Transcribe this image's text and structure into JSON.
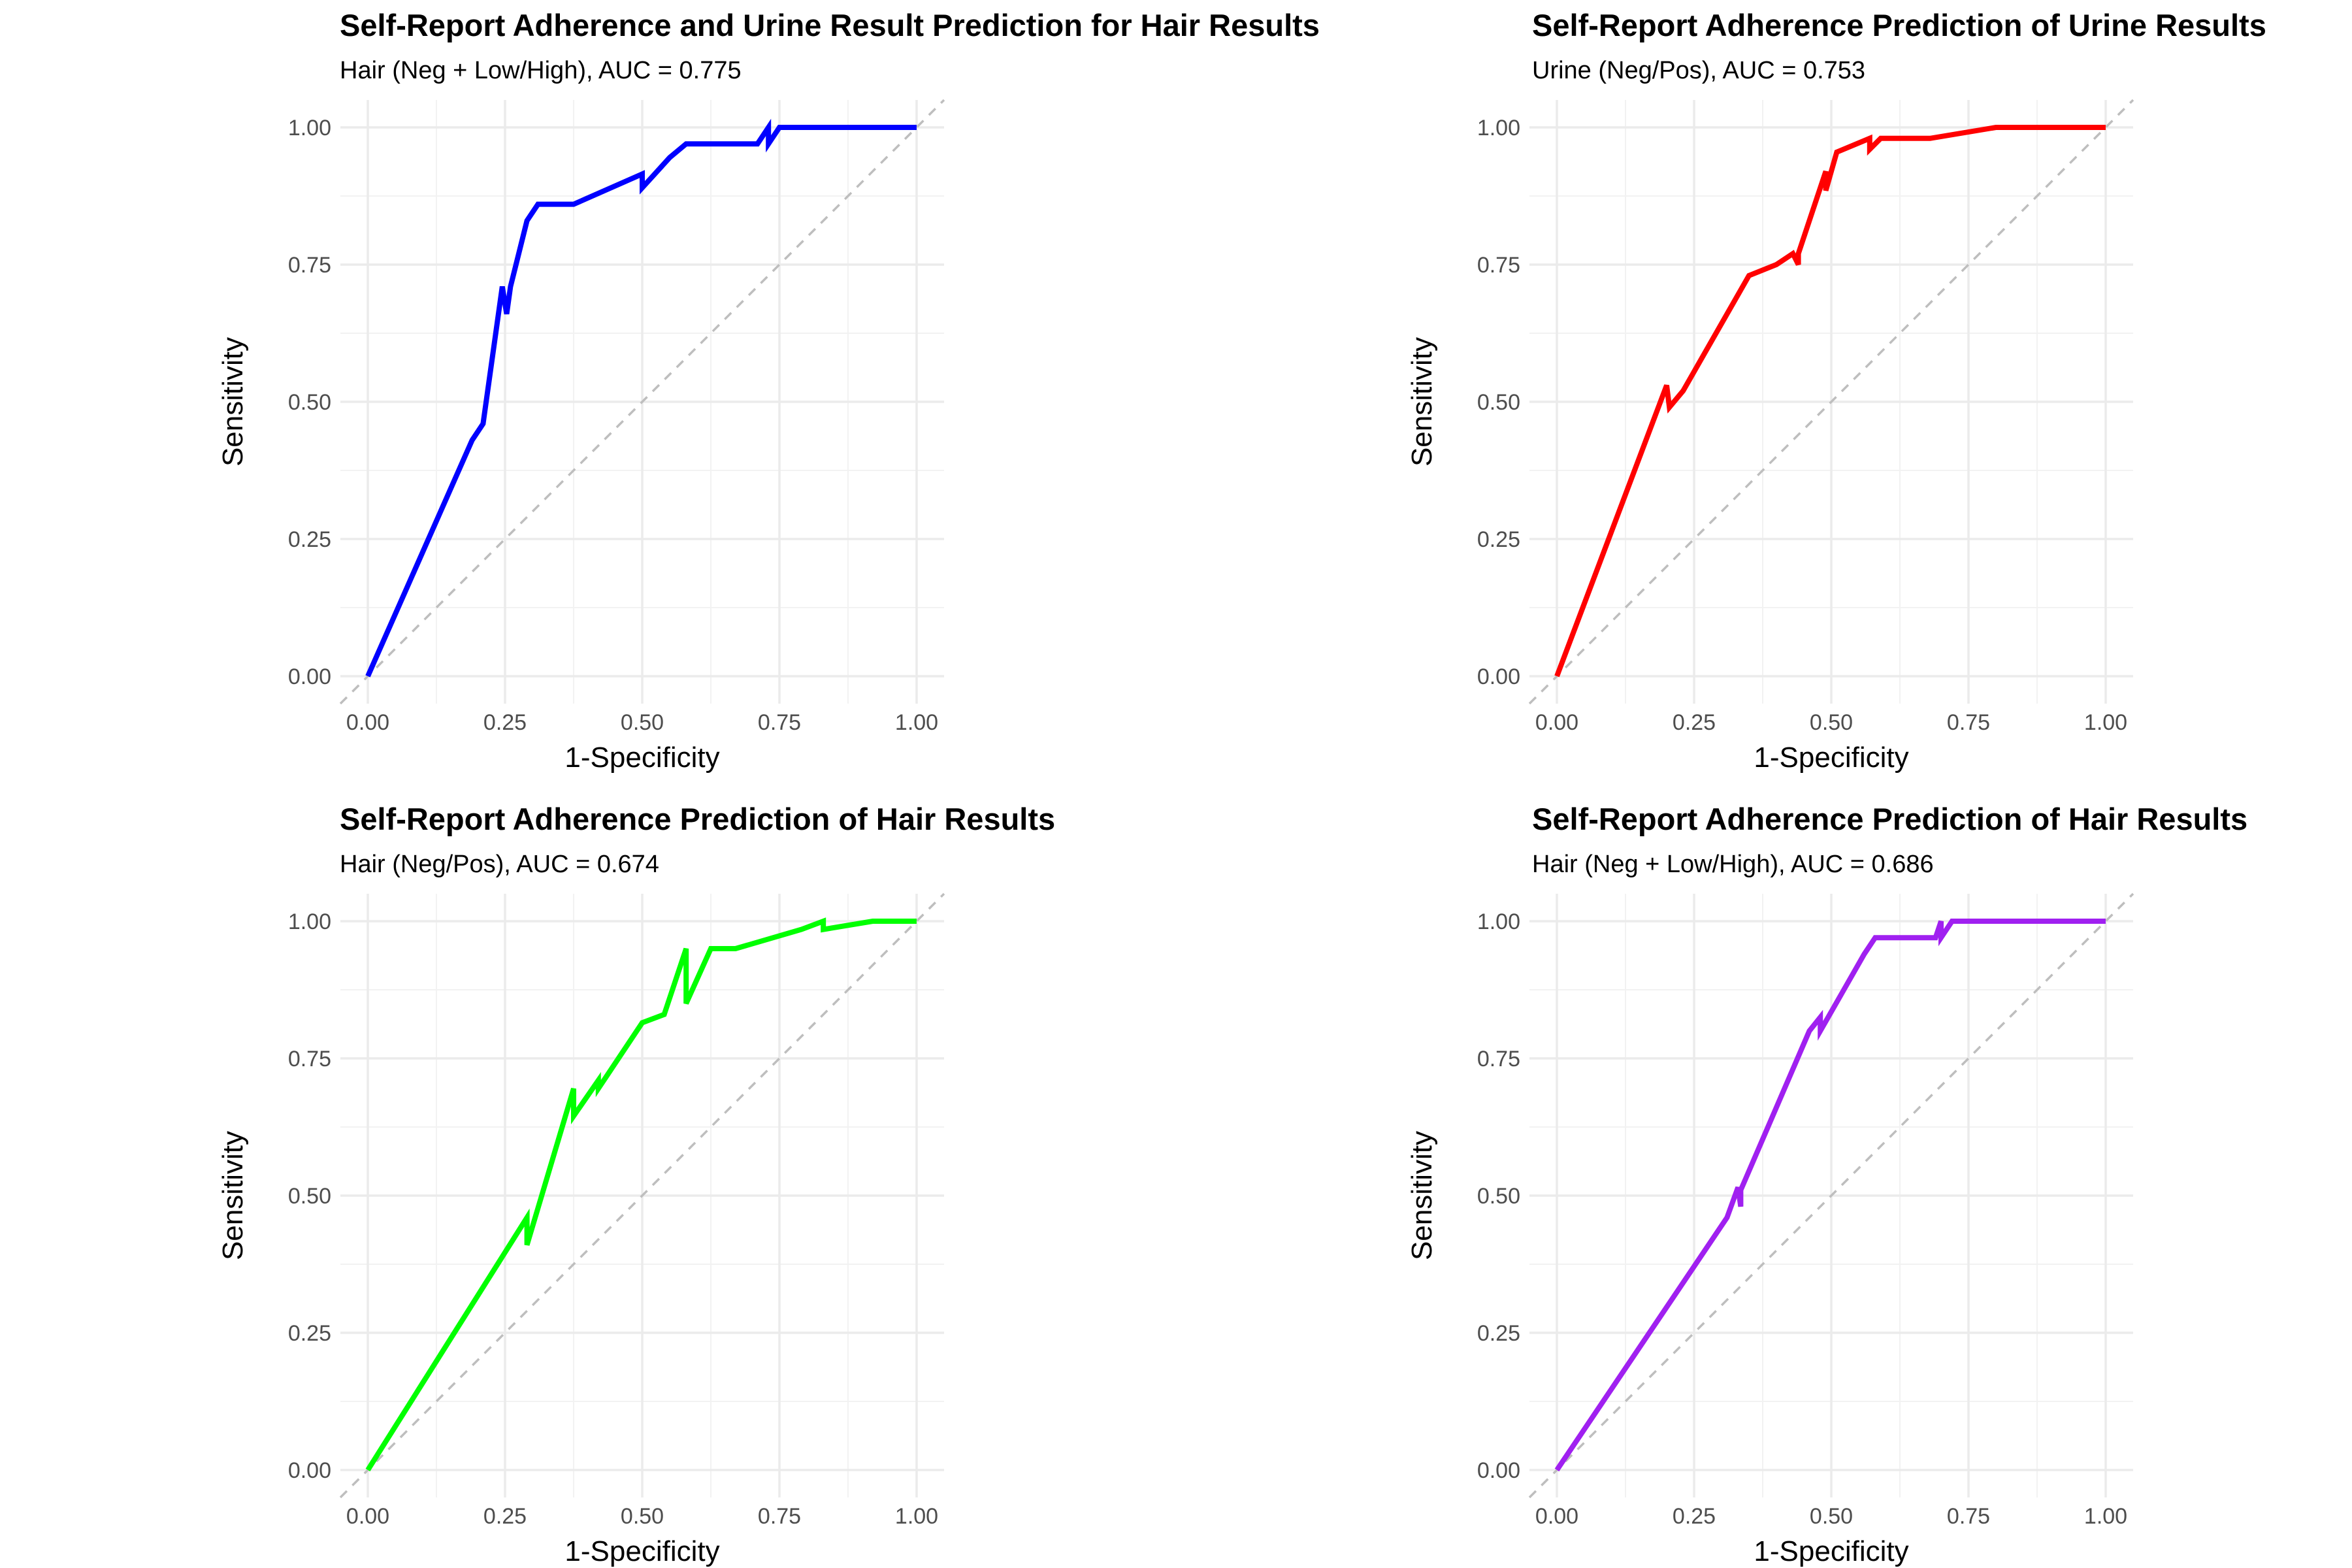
{
  "chart_data": [
    {
      "type": "line",
      "title": "Self-Report Adherence and Urine Result Prediction for Hair Results",
      "subtitle": "Hair (Neg + Low/High), AUC = 0.775",
      "xlabel": "1-Specificity",
      "ylabel": "Sensitivity",
      "xlim": [
        0,
        1
      ],
      "ylim": [
        0,
        1
      ],
      "xticks": [
        "0.00",
        "0.25",
        "0.50",
        "0.75",
        "1.00"
      ],
      "yticks": [
        "0.00",
        "0.25",
        "0.50",
        "0.75",
        "1.00"
      ],
      "grid": true,
      "reference_line": "diagonal",
      "color": "#0000ff",
      "series": [
        {
          "x": [
            0.0,
            0.19,
            0.21,
            0.245,
            0.253,
            0.26,
            0.29,
            0.31,
            0.375,
            0.5,
            0.5,
            0.55,
            0.58,
            0.71,
            0.73,
            0.73,
            0.75,
            1.0
          ],
          "y": [
            0.0,
            0.43,
            0.46,
            0.71,
            0.66,
            0.71,
            0.83,
            0.86,
            0.86,
            0.915,
            0.89,
            0.945,
            0.97,
            0.97,
            1.0,
            0.97,
            1.0,
            1.0
          ]
        }
      ]
    },
    {
      "type": "line",
      "title": "Self-Report Adherence Prediction of Urine Results",
      "subtitle": "Urine (Neg/Pos), AUC = 0.753",
      "xlabel": "1-Specificity",
      "ylabel": "Sensitivity",
      "xlim": [
        0,
        1
      ],
      "ylim": [
        0,
        1
      ],
      "xticks": [
        "0.00",
        "0.25",
        "0.50",
        "0.75",
        "1.00"
      ],
      "yticks": [
        "0.00",
        "0.25",
        "0.50",
        "0.75",
        "1.00"
      ],
      "grid": true,
      "reference_line": "diagonal",
      "color": "#ff0000",
      "series": [
        {
          "x": [
            0.0,
            0.2,
            0.205,
            0.23,
            0.35,
            0.4,
            0.43,
            0.44,
            0.44,
            0.49,
            0.49,
            0.51,
            0.57,
            0.57,
            0.59,
            0.68,
            0.8,
            1.0
          ],
          "y": [
            0.0,
            0.53,
            0.49,
            0.52,
            0.73,
            0.75,
            0.77,
            0.75,
            0.77,
            0.92,
            0.885,
            0.955,
            0.98,
            0.96,
            0.98,
            0.98,
            1.0,
            1.0
          ]
        }
      ]
    },
    {
      "type": "line",
      "title": "Self-Report Adherence Prediction of Hair Results",
      "subtitle": "Hair (Neg/Pos), AUC = 0.674",
      "xlabel": "1-Specificity",
      "ylabel": "Sensitivity",
      "xlim": [
        0,
        1
      ],
      "ylim": [
        0,
        1
      ],
      "xticks": [
        "0.00",
        "0.25",
        "0.50",
        "0.75",
        "1.00"
      ],
      "yticks": [
        "0.00",
        "0.25",
        "0.50",
        "0.75",
        "1.00"
      ],
      "grid": true,
      "reference_line": "diagonal",
      "color": "#00ff00",
      "series": [
        {
          "x": [
            0.0,
            0.29,
            0.29,
            0.375,
            0.375,
            0.42,
            0.42,
            0.5,
            0.54,
            0.58,
            0.58,
            0.625,
            0.67,
            0.79,
            0.83,
            0.83,
            0.92,
            1.0
          ],
          "y": [
            0.0,
            0.46,
            0.41,
            0.695,
            0.645,
            0.71,
            0.695,
            0.815,
            0.83,
            0.95,
            0.85,
            0.95,
            0.95,
            0.985,
            1.0,
            0.985,
            1.0,
            1.0
          ]
        }
      ]
    },
    {
      "type": "line",
      "title": "Self-Report Adherence Prediction of Hair Results",
      "subtitle": "Hair (Neg + Low/High), AUC = 0.686",
      "xlabel": "1-Specificity",
      "ylabel": "Sensitivity",
      "xlim": [
        0,
        1
      ],
      "ylim": [
        0,
        1
      ],
      "xticks": [
        "0.00",
        "0.25",
        "0.50",
        "0.75",
        "1.00"
      ],
      "yticks": [
        "0.00",
        "0.25",
        "0.50",
        "0.75",
        "1.00"
      ],
      "grid": true,
      "reference_line": "diagonal",
      "color": "#a020f0",
      "series": [
        {
          "x": [
            0.0,
            0.31,
            0.33,
            0.335,
            0.335,
            0.46,
            0.48,
            0.48,
            0.52,
            0.56,
            0.58,
            0.69,
            0.7,
            0.7,
            0.72,
            1.0
          ],
          "y": [
            0.0,
            0.46,
            0.515,
            0.48,
            0.51,
            0.8,
            0.825,
            0.8,
            0.87,
            0.94,
            0.97,
            0.97,
            1.0,
            0.97,
            1.0,
            1.0
          ]
        }
      ]
    }
  ]
}
